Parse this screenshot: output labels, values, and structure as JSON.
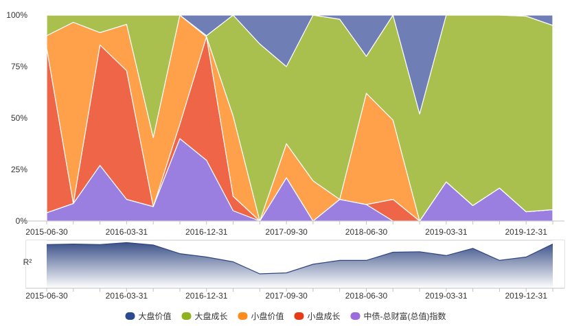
{
  "chart_data": {
    "type": "area",
    "stacked": true,
    "percent": true,
    "x": [
      "2015-06-30",
      "2015-09-30",
      "2015-12-31",
      "2016-03-31",
      "2016-06-30",
      "2016-09-30",
      "2016-12-31",
      "2017-03-31",
      "2017-06-30",
      "2017-09-30",
      "2017-12-31",
      "2018-03-31",
      "2018-06-30",
      "2018-09-30",
      "2018-12-31",
      "2019-03-31",
      "2019-06-30",
      "2019-09-30",
      "2019-12-31",
      "2020-03-31"
    ],
    "x_tick_labels": [
      "2015-06-30",
      "2016-03-31",
      "2016-12-31",
      "2017-09-30",
      "2018-06-30",
      "2019-03-31",
      "2019-12-31"
    ],
    "y_tick_labels": [
      "0%",
      "25%",
      "50%",
      "75%",
      "100%"
    ],
    "ylim": [
      0,
      100
    ],
    "grid": true,
    "legend_position": "bottom",
    "series": [
      {
        "name": "中债-总财富(总值)指数",
        "color": "#9b7fe0",
        "values": [
          4,
          8.5,
          27,
          10.5,
          7,
          40,
          29.5,
          5,
          0,
          21,
          0,
          10.5,
          8,
          0,
          0,
          19,
          7.5,
          16,
          4.5,
          5.5
        ]
      },
      {
        "name": "小盘成长",
        "color": "#ee6547",
        "values": [
          80,
          0,
          58.5,
          62.5,
          0,
          7,
          60,
          7,
          0,
          0,
          0,
          0,
          0,
          10.5,
          0,
          0,
          0,
          0,
          0,
          0
        ]
      },
      {
        "name": "小盘价值",
        "color": "#ffa04a",
        "values": [
          6,
          88,
          6,
          22.5,
          33.5,
          53,
          0,
          39,
          0,
          16.5,
          19.5,
          0,
          54,
          38.5,
          0,
          0,
          0,
          0,
          0,
          0
        ]
      },
      {
        "name": "大盘成长",
        "color": "#a9c04f",
        "values": [
          10,
          3.5,
          8.5,
          4.5,
          59.5,
          0,
          0.5,
          49,
          86,
          37.5,
          80.5,
          87.5,
          18,
          51,
          52,
          81,
          92.5,
          84,
          95,
          89.5
        ]
      },
      {
        "name": "大盘价值",
        "color": "#6f7eb5",
        "values": [
          0,
          0,
          0,
          0,
          0,
          0,
          10,
          0,
          14,
          25,
          0,
          2,
          20,
          0,
          48,
          0,
          0,
          0,
          0.5,
          5
        ]
      }
    ],
    "legend_colors": [
      "#2e4a8f",
      "#8fb31f",
      "#ff8c1a",
      "#e83a17",
      "#9b6ddc"
    ],
    "navigator": {
      "label": "R²",
      "values": [
        0.91,
        0.92,
        0.91,
        0.95,
        0.9,
        0.72,
        0.65,
        0.55,
        0.3,
        0.32,
        0.5,
        0.58,
        0.58,
        0.75,
        0.76,
        0.68,
        0.83,
        0.58,
        0.65,
        0.92
      ]
    }
  }
}
